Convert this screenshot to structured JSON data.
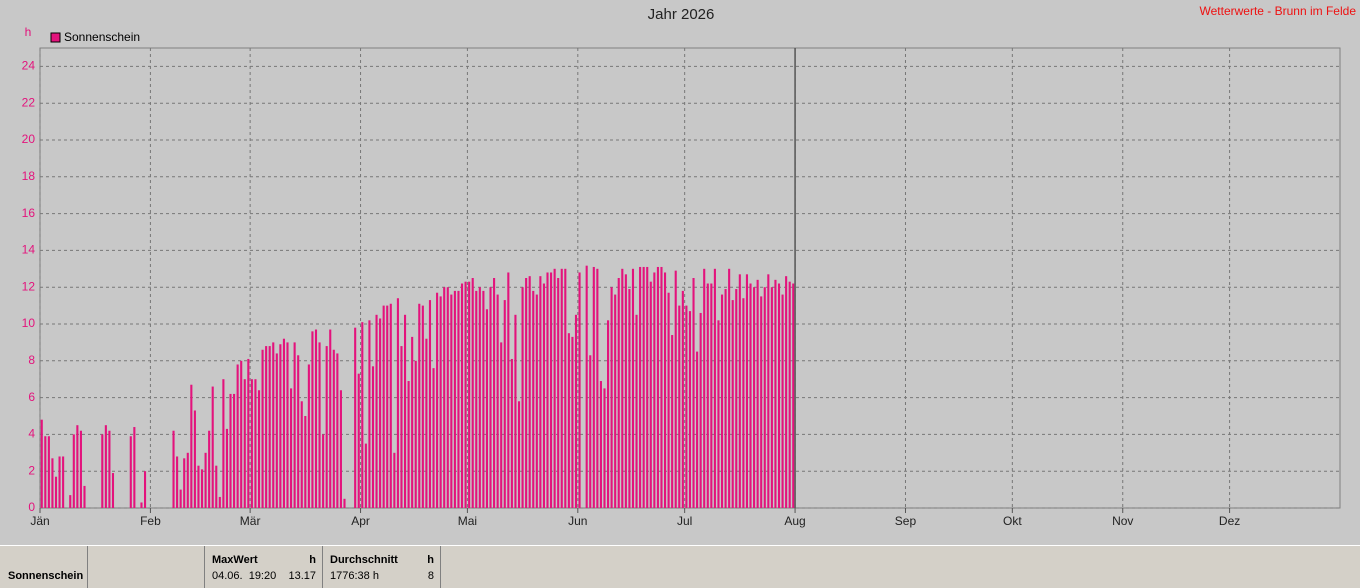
{
  "chart_data": {
    "type": "bar",
    "title": "Jahr 2026",
    "annotation": "Wetterwerte - Brunn im Felde",
    "y_label": "h",
    "series": [
      {
        "name": "Sonnenschein",
        "color": "#e3137c",
        "values": [
          4.8,
          3.9,
          3.9,
          2.7,
          1.7,
          2.8,
          2.8,
          0,
          0.7,
          4.0,
          4.5,
          4.2,
          1.2,
          0,
          0,
          0,
          0,
          4.0,
          4.5,
          4.2,
          1.9,
          0,
          0,
          0,
          0,
          3.9,
          4.4,
          0,
          0.3,
          2.0,
          0,
          0,
          0,
          0,
          0,
          0,
          0,
          4.2,
          2.8,
          1.0,
          2.7,
          3.0,
          6.7,
          5.3,
          2.3,
          2.1,
          3.0,
          4.2,
          6.6,
          2.3,
          0.6,
          7.0,
          4.3,
          6.2,
          6.2,
          7.8,
          8.0,
          7.0,
          8.1,
          7.0,
          7.0,
          6.4,
          8.6,
          8.8,
          8.8,
          9.0,
          8.4,
          8.9,
          9.2,
          9.0,
          6.5,
          9.0,
          8.3,
          5.8,
          5.0,
          7.8,
          9.6,
          9.7,
          9.0,
          4.0,
          8.8,
          9.7,
          8.6,
          8.4,
          6.4,
          0.5,
          0,
          0,
          9.8,
          7.3,
          10.1,
          3.5,
          10.2,
          7.7,
          10.5,
          10.3,
          11.0,
          11.0,
          11.1,
          3.0,
          11.4,
          8.8,
          10.5,
          6.9,
          9.3,
          8.0,
          11.1,
          11.0,
          9.2,
          11.3,
          7.6,
          11.7,
          11.5,
          12.0,
          12.0,
          11.6,
          11.8,
          11.8,
          12.2,
          12.3,
          12.3,
          12.5,
          11.8,
          12.0,
          11.8,
          10.8,
          12.0,
          12.5,
          11.6,
          9.0,
          11.3,
          12.8,
          8.1,
          10.5,
          5.8,
          12.0,
          12.5,
          12.6,
          11.8,
          11.6,
          12.6,
          12.2,
          12.8,
          12.8,
          13.0,
          12.5,
          13.0,
          13.0,
          9.5,
          9.3,
          10.5,
          12.8,
          0,
          13.17,
          8.3,
          13.1,
          13.0,
          6.9,
          6.5,
          10.2,
          12.0,
          11.6,
          12.5,
          13.0,
          12.7,
          11.9,
          13.0,
          10.5,
          13.1,
          13.1,
          13.1,
          12.3,
          12.8,
          13.1,
          13.1,
          12.8,
          11.7,
          9.4,
          12.9,
          11.0,
          11.8,
          11.0,
          10.7,
          12.5,
          8.5,
          10.6,
          13.0,
          12.2,
          12.2,
          13.0,
          10.2,
          11.6,
          11.9,
          13.0,
          11.3,
          11.9,
          12.7,
          11.4,
          12.7,
          12.2,
          12.0,
          12.4,
          11.5,
          12.0,
          12.7,
          12.0,
          12.4,
          12.2,
          11.6,
          12.6,
          12.3,
          12.2
        ]
      }
    ],
    "xlim": [
      0,
      365
    ],
    "xticks": [
      {
        "value": 0,
        "label": "Jän"
      },
      {
        "value": 31,
        "label": "Feb"
      },
      {
        "value": 59,
        "label": "Mär"
      },
      {
        "value": 90,
        "label": "Apr"
      },
      {
        "value": 120,
        "label": "Mai"
      },
      {
        "value": 151,
        "label": "Jun"
      },
      {
        "value": 181,
        "label": "Jul"
      },
      {
        "value": 212,
        "label": "Aug"
      },
      {
        "value": 243,
        "label": "Sep"
      },
      {
        "value": 273,
        "label": "Okt"
      },
      {
        "value": 304,
        "label": "Nov"
      },
      {
        "value": 334,
        "label": "Dez"
      }
    ],
    "ylim": [
      0,
      25
    ],
    "yticks": [
      0,
      2,
      4,
      6,
      8,
      10,
      12,
      14,
      16,
      18,
      20,
      22,
      24
    ],
    "grid": true
  },
  "footer": {
    "label": "Sonnenschein",
    "max": {
      "header": "MaxWert",
      "unit": "h",
      "time": "04.06.  19:20",
      "value": "13.17"
    },
    "avg": {
      "header": "Durchschnitt",
      "unit": "h",
      "total": "1776:38 h",
      "value": "8"
    }
  }
}
